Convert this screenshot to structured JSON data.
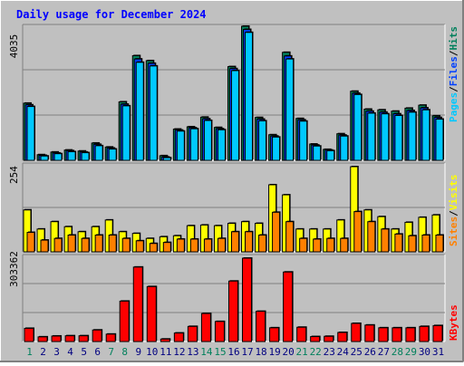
{
  "chart_data": [
    {
      "type": "bar",
      "title": "Daily usage for December 2024",
      "categories": [
        "1",
        "2",
        "3",
        "4",
        "5",
        "6",
        "7",
        "8",
        "9",
        "10",
        "11",
        "12",
        "13",
        "14",
        "15",
        "16",
        "17",
        "18",
        "19",
        "20",
        "21",
        "22",
        "23",
        "24",
        "25",
        "26",
        "27",
        "28",
        "29",
        "30",
        "31"
      ],
      "weekend_days": [
        1,
        7,
        8,
        14,
        15,
        21,
        22,
        28,
        29
      ],
      "ymax_label": "4035",
      "ylim": [
        0,
        4035
      ],
      "legend": [
        "Pages",
        "Files",
        "Hits"
      ],
      "series": [
        {
          "name": "Hits",
          "values": [
            1720,
            170,
            250,
            310,
            280,
            520,
            400,
            1760,
            3150,
            3000,
            140,
            940,
            1010,
            1300,
            990,
            2820,
            4035,
            1290,
            770,
            3250,
            1260,
            490,
            330,
            800,
            2080,
            1540,
            1520,
            1480,
            1570,
            1660,
            1340
          ]
        },
        {
          "name": "Files",
          "values": [
            1670,
            150,
            220,
            290,
            250,
            480,
            370,
            1690,
            3050,
            2920,
            100,
            910,
            980,
            1250,
            950,
            2760,
            3940,
            1240,
            730,
            3140,
            1220,
            460,
            310,
            760,
            2020,
            1480,
            1450,
            1400,
            1500,
            1580,
            1290
          ]
        },
        {
          "name": "Pages",
          "values": [
            1620,
            130,
            200,
            260,
            230,
            440,
            340,
            1640,
            2950,
            2840,
            80,
            880,
            950,
            1200,
            920,
            2700,
            3850,
            1190,
            700,
            3050,
            1180,
            430,
            290,
            730,
            1980,
            1420,
            1400,
            1350,
            1450,
            1520,
            1240
          ]
        }
      ]
    },
    {
      "type": "bar",
      "categories": [
        "1",
        "2",
        "3",
        "4",
        "5",
        "6",
        "7",
        "8",
        "9",
        "10",
        "11",
        "12",
        "13",
        "14",
        "15",
        "16",
        "17",
        "18",
        "19",
        "20",
        "21",
        "22",
        "23",
        "24",
        "25",
        "26",
        "27",
        "28",
        "29",
        "30",
        "31"
      ],
      "ymax_label": "254",
      "ylim": [
        0,
        254
      ],
      "legend": [
        "Sites",
        "Visits"
      ],
      "series": [
        {
          "name": "Visits",
          "values": [
            125,
            68,
            90,
            75,
            60,
            75,
            95,
            60,
            55,
            40,
            45,
            48,
            78,
            80,
            78,
            85,
            90,
            85,
            200,
            170,
            68,
            68,
            68,
            95,
            254,
            125,
            105,
            68,
            88,
            103,
            110
          ]
        },
        {
          "name": "Sites",
          "values": [
            58,
            35,
            40,
            50,
            40,
            50,
            50,
            40,
            33,
            25,
            28,
            38,
            38,
            38,
            40,
            60,
            60,
            50,
            118,
            90,
            40,
            38,
            40,
            40,
            120,
            90,
            68,
            53,
            48,
            50,
            50
          ]
        }
      ]
    },
    {
      "type": "bar",
      "categories": [
        "1",
        "2",
        "3",
        "4",
        "5",
        "6",
        "7",
        "8",
        "9",
        "10",
        "11",
        "12",
        "13",
        "14",
        "15",
        "16",
        "17",
        "18",
        "19",
        "20",
        "21",
        "22",
        "23",
        "24",
        "25",
        "26",
        "27",
        "28",
        "29",
        "30",
        "31"
      ],
      "ymax_label": "303362",
      "ylim": [
        0,
        303362
      ],
      "legend": [
        "KBytes"
      ],
      "series": [
        {
          "name": "KBytes",
          "values": [
            48000,
            17000,
            20000,
            21000,
            21000,
            42000,
            27000,
            147000,
            271000,
            200000,
            9000,
            31000,
            55000,
            102000,
            73000,
            220000,
            303362,
            110000,
            50000,
            253000,
            52000,
            18000,
            19000,
            33000,
            66000,
            60000,
            50000,
            50000,
            50000,
            55000,
            58000
          ]
        }
      ]
    }
  ],
  "colors": {
    "frame": "#c0c0c0",
    "plot_bg": "#c0c0c0",
    "title": "#0000ff",
    "hits": "#00805c",
    "files": "#0040ff",
    "pages": "#00c8ff",
    "visits": "#ffff00",
    "sites": "#ff8000",
    "kbytes": "#ff0000",
    "weekend_label": "#00805c",
    "weekday_label": "#000080"
  }
}
